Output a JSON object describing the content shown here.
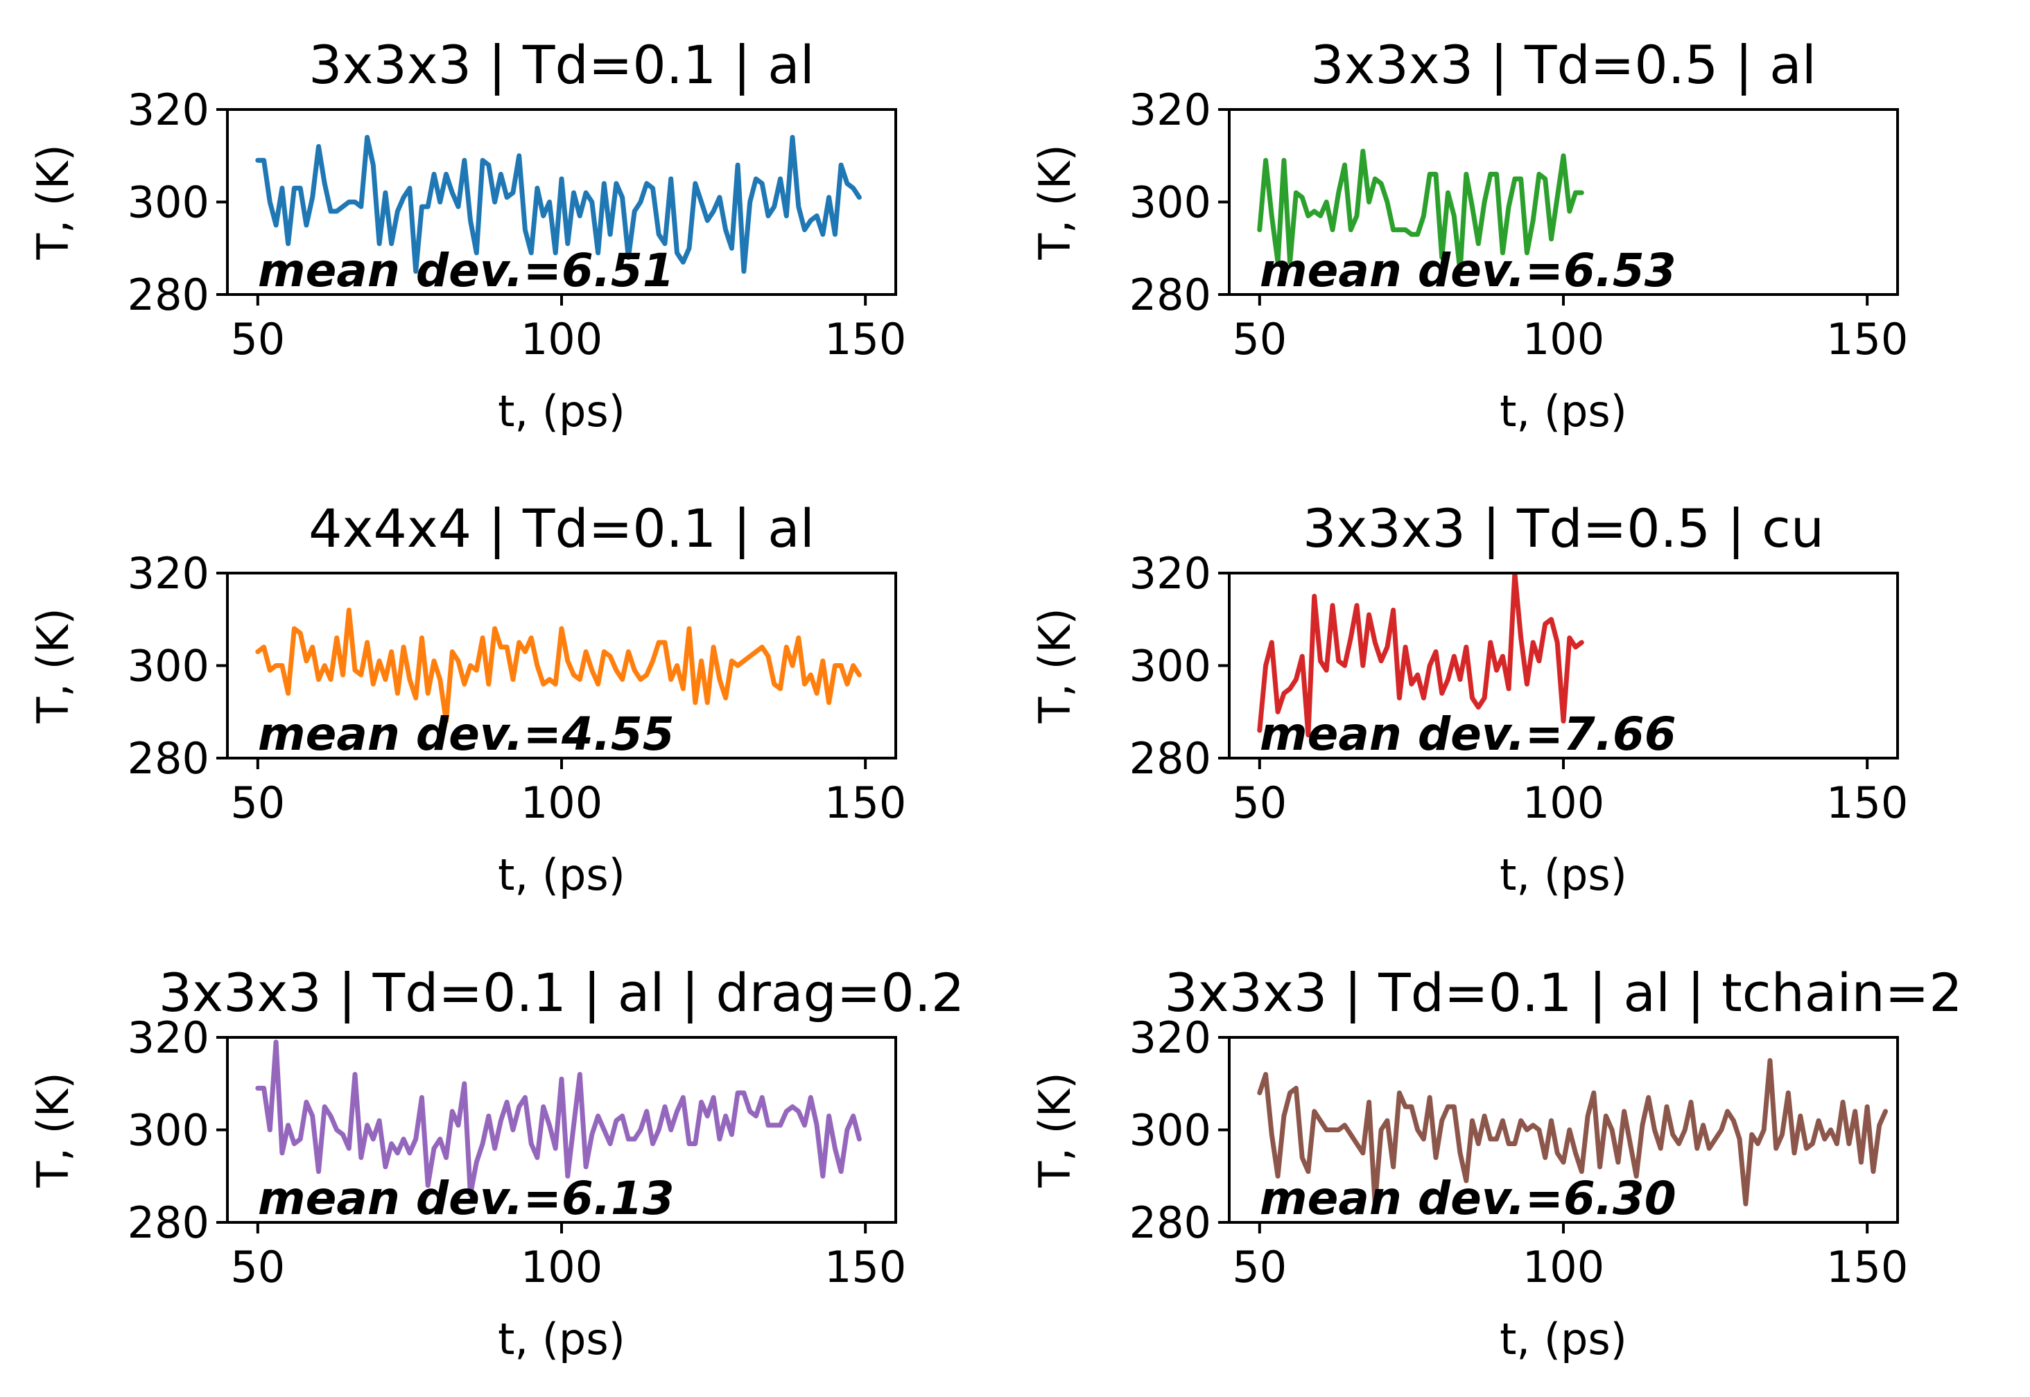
{
  "chart_data": [
    {
      "type": "line",
      "title": "3x3x3 | Td=0.1 | al",
      "xlabel": "t, (ps)",
      "ylabel": "T, (K)",
      "xlim": [
        45,
        155
      ],
      "ylim": [
        280,
        320
      ],
      "xticks": [
        50,
        100,
        150
      ],
      "yticks": [
        280,
        300,
        320
      ],
      "color": "#1f77b4",
      "annotation": "mean dev.=6.51",
      "series": [
        {
          "x_start": 50,
          "x_step": 1,
          "y": [
            309,
            309,
            300,
            295,
            303,
            291,
            303,
            303,
            295,
            301,
            312,
            304,
            298,
            298,
            299,
            300,
            300,
            299,
            314,
            308,
            291,
            302,
            291,
            298,
            301,
            303,
            285,
            299,
            299,
            306,
            300,
            306,
            302,
            299,
            309,
            296,
            289,
            309,
            308,
            300,
            306,
            301,
            302,
            310,
            294,
            289,
            303,
            297,
            300,
            289,
            305,
            291,
            302,
            297,
            302,
            300,
            289,
            304,
            293,
            304,
            301,
            288,
            298,
            300,
            304,
            303,
            293,
            291,
            305,
            289,
            287,
            290,
            304,
            300,
            296,
            298,
            301,
            294,
            290,
            308,
            285,
            300,
            305,
            304,
            297,
            299,
            305,
            297,
            314,
            299,
            294,
            296,
            297,
            293,
            301,
            293,
            308,
            304,
            303,
            301
          ]
        }
      ]
    },
    {
      "type": "line",
      "title": "3x3x3 | Td=0.5 | al",
      "xlabel": "t, (ps)",
      "ylabel": "T, (K)",
      "xlim": [
        45,
        155
      ],
      "ylim": [
        280,
        320
      ],
      "xticks": [
        50,
        100,
        150
      ],
      "yticks": [
        280,
        300,
        320
      ],
      "color": "#2ca02c",
      "annotation": "mean dev.=6.53",
      "series": [
        {
          "x_start": 50,
          "x_step": 1,
          "y": [
            294,
            309,
            297,
            287,
            309,
            287,
            302,
            301,
            297,
            298,
            297,
            300,
            294,
            302,
            308,
            294,
            297,
            311,
            300,
            305,
            304,
            300,
            294,
            294,
            294,
            293,
            293,
            297,
            306,
            306,
            288,
            302,
            297,
            285,
            306,
            299,
            291,
            300,
            306,
            306,
            289,
            299,
            305,
            305,
            289,
            296,
            306,
            305,
            292,
            301,
            310,
            298,
            302,
            302
          ]
        }
      ]
    },
    {
      "type": "line",
      "title": "4x4x4 | Td=0.1 | al",
      "xlabel": "t, (ps)",
      "ylabel": "T, (K)",
      "xlim": [
        45,
        155
      ],
      "ylim": [
        280,
        320
      ],
      "xticks": [
        50,
        100,
        150
      ],
      "yticks": [
        280,
        300,
        320
      ],
      "color": "#ff7f0e",
      "annotation": "mean dev.=4.55",
      "series": [
        {
          "x_start": 50,
          "x_step": 1,
          "y": [
            303,
            304,
            299,
            300,
            300,
            294,
            308,
            307,
            301,
            304,
            297,
            300,
            297,
            306,
            298,
            312,
            299,
            298,
            305,
            296,
            301,
            297,
            303,
            294,
            304,
            297,
            293,
            306,
            294,
            301,
            297,
            288,
            303,
            301,
            296,
            300,
            299,
            306,
            296,
            308,
            304,
            304,
            297,
            305,
            303,
            306,
            300,
            296,
            297,
            296,
            308,
            301,
            298,
            297,
            303,
            299,
            296,
            303,
            302,
            299,
            297,
            303,
            299,
            297,
            298,
            301,
            305,
            305,
            297,
            300,
            295,
            308,
            292,
            301,
            292,
            304,
            297,
            293,
            301,
            300,
            301,
            302,
            303,
            304,
            302,
            296,
            295,
            304,
            300,
            306,
            296,
            298,
            294,
            301,
            292,
            300,
            300,
            296,
            300,
            298
          ]
        }
      ]
    },
    {
      "type": "line",
      "title": "3x3x3 | Td=0.5 | cu",
      "xlabel": "t, (ps)",
      "ylabel": "T, (K)",
      "xlim": [
        45,
        155
      ],
      "ylim": [
        280,
        320
      ],
      "xticks": [
        50,
        100,
        150
      ],
      "yticks": [
        280,
        300,
        320
      ],
      "color": "#d62728",
      "annotation": "mean dev.=7.66",
      "series": [
        {
          "x_start": 50,
          "x_step": 1,
          "y": [
            286,
            300,
            305,
            290,
            294,
            295,
            297,
            302,
            285,
            315,
            301,
            299,
            313,
            301,
            300,
            306,
            313,
            300,
            311,
            305,
            301,
            304,
            312,
            293,
            304,
            296,
            298,
            293,
            300,
            303,
            294,
            297,
            302,
            297,
            304,
            293,
            291,
            293,
            305,
            299,
            302,
            295,
            320,
            306,
            296,
            305,
            301,
            309,
            310,
            305,
            288,
            306,
            304,
            305
          ]
        }
      ]
    },
    {
      "type": "line",
      "title": "3x3x3 | Td=0.1 | al | drag=0.2",
      "xlabel": "t, (ps)",
      "ylabel": "T, (K)",
      "xlim": [
        45,
        155
      ],
      "ylim": [
        280,
        320
      ],
      "xticks": [
        50,
        100,
        150
      ],
      "yticks": [
        280,
        300,
        320
      ],
      "color": "#9467bd",
      "annotation": "mean dev.=6.13",
      "series": [
        {
          "x_start": 50,
          "x_step": 1,
          "y": [
            309,
            309,
            300,
            319,
            295,
            301,
            297,
            298,
            306,
            303,
            291,
            305,
            303,
            300,
            299,
            296,
            312,
            294,
            301,
            298,
            302,
            292,
            297,
            295,
            298,
            295,
            298,
            307,
            288,
            296,
            298,
            294,
            304,
            301,
            310,
            286,
            293,
            297,
            303,
            296,
            302,
            306,
            300,
            305,
            307,
            297,
            294,
            305,
            301,
            296,
            311,
            290,
            301,
            312,
            292,
            299,
            303,
            300,
            297,
            302,
            303,
            298,
            298,
            300,
            304,
            297,
            300,
            305,
            300,
            304,
            307,
            297,
            297,
            306,
            303,
            307,
            298,
            303,
            299,
            308,
            308,
            304,
            303,
            307,
            301,
            301,
            301,
            304,
            305,
            304,
            301,
            307,
            301,
            290,
            303,
            296,
            291,
            300,
            303,
            298
          ]
        }
      ]
    },
    {
      "type": "line",
      "title": "3x3x3 | Td=0.1 | al | tchain=2",
      "xlabel": "t, (ps)",
      "ylabel": "T, (K)",
      "xlim": [
        45,
        155
      ],
      "ylim": [
        280,
        320
      ],
      "xticks": [
        50,
        100,
        150
      ],
      "yticks": [
        280,
        300,
        320
      ],
      "color": "#8c564b",
      "annotation": "mean dev.=6.30",
      "series": [
        {
          "x_start": 50,
          "x_step": 1,
          "y": [
            308,
            312,
            299,
            290,
            303,
            308,
            309,
            294,
            291,
            304,
            302,
            300,
            300,
            300,
            301,
            299,
            297,
            295,
            306,
            284,
            300,
            302,
            292,
            308,
            305,
            305,
            300,
            298,
            307,
            294,
            302,
            305,
            305,
            295,
            289,
            302,
            297,
            303,
            298,
            298,
            302,
            297,
            297,
            302,
            300,
            301,
            300,
            294,
            302,
            295,
            293,
            300,
            295,
            291,
            303,
            308,
            292,
            303,
            300,
            293,
            304,
            297,
            290,
            301,
            307,
            300,
            296,
            305,
            299,
            297,
            300,
            306,
            296,
            301,
            296,
            298,
            300,
            304,
            302,
            298,
            284,
            299,
            297,
            300,
            315,
            296,
            299,
            308,
            295,
            303,
            296,
            297,
            302,
            298,
            300,
            297,
            306,
            297,
            304,
            293,
            305,
            291,
            301,
            304
          ]
        }
      ]
    }
  ]
}
